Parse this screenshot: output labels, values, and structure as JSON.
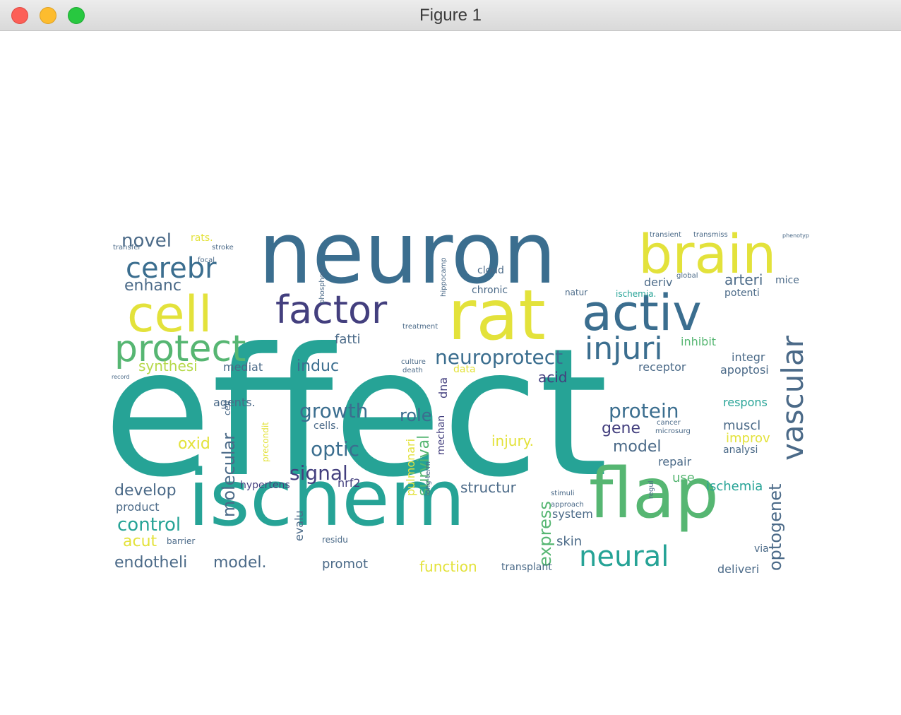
{
  "window": {
    "title": "Figure 1"
  },
  "colors": {
    "teal": "#26a396",
    "blue": "#3b6e8f",
    "purple": "#433f7e",
    "yellow": "#e3e23b",
    "green": "#56b672",
    "slate": "#4b6a88",
    "lime": "#b6d94a"
  },
  "wordcloud": {
    "words": [
      "effect",
      "neuron",
      "ischem",
      "brain",
      "rat",
      "cell",
      "activ",
      "flap",
      "factor",
      "protect",
      "cerebr",
      "vascular",
      "injuri",
      "neural",
      "neuroprotect",
      "novel",
      "enhanc",
      "growth",
      "optic",
      "signal",
      "protein",
      "molecular",
      "optogenet",
      "express",
      "develop",
      "control",
      "endotheli",
      "model.",
      "acut",
      "oxid",
      "synthesi",
      "induc",
      "fatti",
      "mediat",
      "acid",
      "role",
      "model",
      "gene",
      "survival",
      "injury.",
      "structur",
      "function",
      "transplant",
      "muscl",
      "improv",
      "analysi",
      "respons",
      "integr",
      "apoptosi",
      "receptor",
      "inhibit",
      "arteri",
      "mice",
      "potenti",
      "deriv",
      "ischemia",
      "repair",
      "use",
      "skin",
      "system",
      "deliveri",
      "via",
      "dna",
      "data",
      "agents.",
      "cells.",
      "promot",
      "product",
      "barrier",
      "hypertens",
      "evalu",
      "residu",
      "pulmonari",
      "rats.",
      "cloud",
      "chronic",
      "natur",
      "ischemia.",
      "stroke",
      "transfer",
      "nrf2",
      "mechan",
      "precondit",
      "cell",
      "death",
      "culture",
      "treatment",
      "hippocamp",
      "phosphoryl",
      "long-term",
      "regul",
      "cancer",
      "microsurg",
      "stimuli",
      "approach",
      "global",
      "focal",
      "record",
      "transient",
      "transmiss",
      "phenotyp"
    ]
  }
}
